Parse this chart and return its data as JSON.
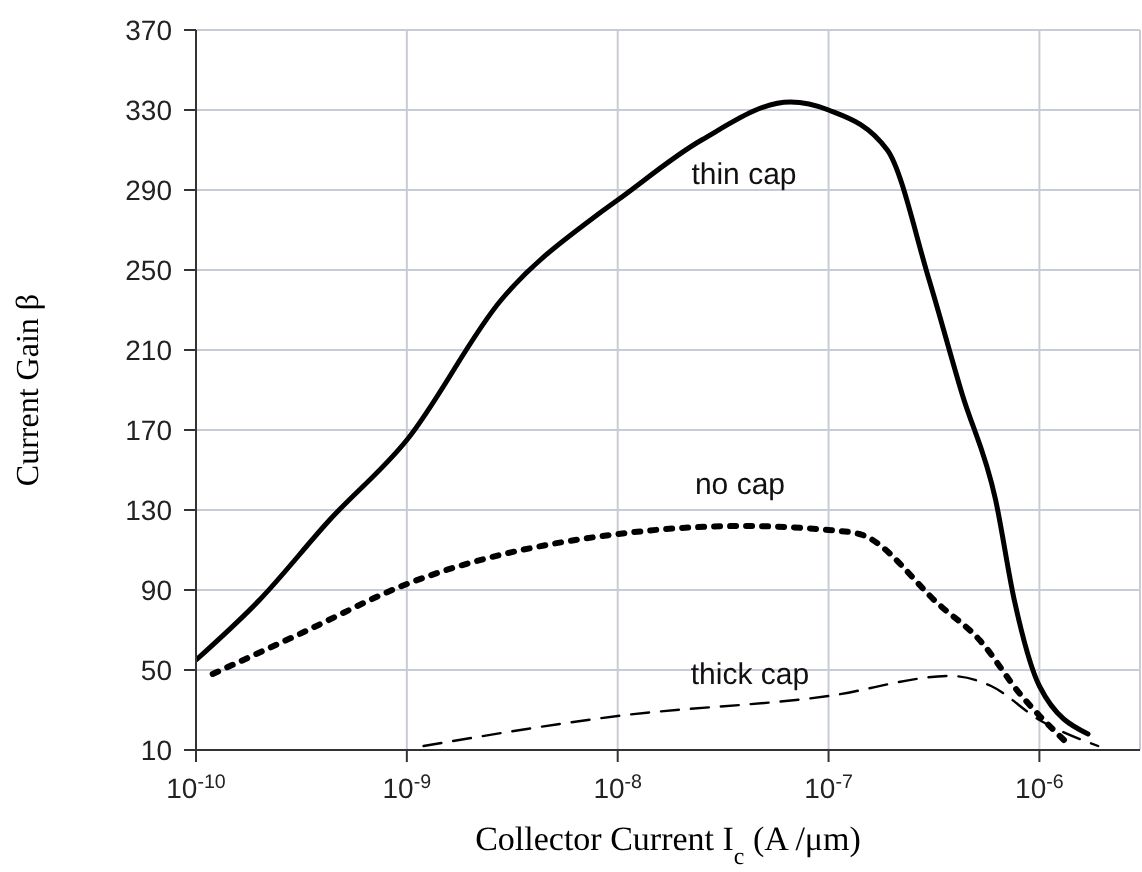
{
  "chart_data": {
    "type": "line",
    "xlabel": "Collector Current I$_{c}$ (A /μm)",
    "ylabel": "Current Gain  β",
    "log": "x",
    "grid": true,
    "legend": false,
    "marker": "none",
    "xlim": [
      1e-10,
      3e-06
    ],
    "xticks": [
      {
        "value": 1e-10,
        "label": "10$^{-10}$"
      },
      {
        "value": 1e-09,
        "label": "10$^{-9}$"
      },
      {
        "value": 1e-08,
        "label": "10$^{-8}$"
      },
      {
        "value": 1e-07,
        "label": "10$^{-7}$"
      },
      {
        "value": 1e-06,
        "label": "10$^{-6}$"
      }
    ],
    "ylim": [
      10,
      370
    ],
    "yticks": [
      10,
      50,
      90,
      130,
      170,
      210,
      250,
      290,
      330,
      370
    ],
    "series": [
      {
        "color": "#000000",
        "line_style": "solid",
        "x": [
          1e-10,
          2e-10,
          4.3e-10,
          1e-09,
          2.8e-09,
          8.1e-09,
          1e-08,
          2.5e-08,
          6.6e-08,
          1e-07,
          1.9e-07,
          3e-07,
          4.3e-07,
          6.2e-07,
          7.6e-07,
          1e-06,
          1.7e-06
        ],
        "values": [
          55,
          85,
          125,
          165,
          235,
          278,
          285,
          315,
          334,
          330,
          310,
          245,
          188,
          135,
          85,
          42,
          18
        ]
      },
      {
        "color": "#000000",
        "line_style": "dotted",
        "x": [
          1.2e-10,
          3.1e-10,
          1e-09,
          1e-08,
          4e-08,
          1e-07,
          1.4e-07,
          3.4e-07,
          5.2e-07,
          8.1e-07,
          1.4e-06
        ],
        "values": [
          48,
          68,
          93,
          118,
          122,
          120,
          118,
          82,
          65,
          38,
          12
        ]
      },
      {
        "color": "#000000",
        "line_style": "dashed",
        "x": [
          1.2e-09,
          1e-08,
          1e-07,
          3.8e-07,
          5.9e-07,
          1e-06,
          1.9e-06
        ],
        "values": [
          12,
          27,
          37,
          47,
          42,
          25,
          12
        ]
      }
    ],
    "annotations": [
      "thin cap",
      "no cap",
      "thick cap"
    ]
  }
}
